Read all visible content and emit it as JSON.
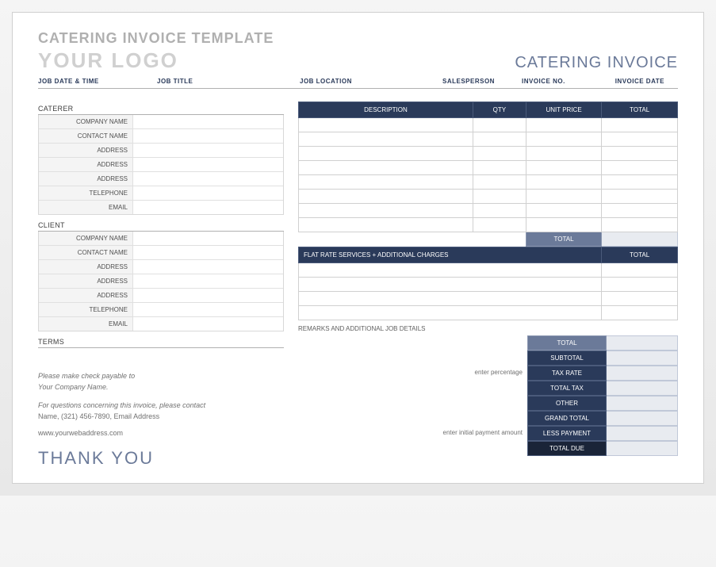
{
  "doc_title": "CATERING INVOICE TEMPLATE",
  "logo_placeholder": "YOUR LOGO",
  "invoice_heading": "CATERING INVOICE",
  "job_headers": {
    "date_time": "JOB DATE & TIME",
    "title": "JOB TITLE",
    "location": "JOB LOCATION",
    "salesperson": "SALESPERSON",
    "invoice_no": "INVOICE NO.",
    "invoice_date": "INVOICE DATE"
  },
  "sections": {
    "caterer": "CATERER",
    "client": "CLIENT",
    "terms": "TERMS"
  },
  "info_labels": {
    "company": "COMPANY NAME",
    "contact": "CONTACT NAME",
    "address": "ADDRESS",
    "telephone": "TELEPHONE",
    "email": "EMAIL"
  },
  "line_items_table": {
    "headers": {
      "description": "DESCRIPTION",
      "qty": "QTY",
      "unit_price": "UNIT PRICE",
      "total": "TOTAL"
    },
    "row_count": 8,
    "total_label": "TOTAL"
  },
  "flat_rate_table": {
    "header_left": "FLAT RATE SERVICES + ADDITIONAL CHARGES",
    "header_right": "TOTAL",
    "row_count": 4
  },
  "remarks_label": "REMARKS AND ADDITIONAL JOB DETAILS",
  "summary_notes": {
    "percentage": "enter percentage",
    "initial_payment": "enter initial payment amount"
  },
  "summary_labels": {
    "total": "TOTAL",
    "subtotal": "SUBTOTAL",
    "tax_rate": "TAX RATE",
    "total_tax": "TOTAL TAX",
    "other": "OTHER",
    "grand_total": "GRAND TOTAL",
    "less_payment": "LESS PAYMENT",
    "total_due": "TOTAL DUE"
  },
  "payment": {
    "line1": "Please make check payable to",
    "line2": "Your Company Name.",
    "line3": "For questions concerning this invoice, please contact",
    "line4": "Name, (321) 456-7890, Email Address",
    "website": "www.yourwebaddress.com"
  },
  "thank_you": "THANK YOU",
  "colors": {
    "header_dark": "#2a3a5a",
    "header_mid": "#6b7a99",
    "header_darkest": "#1a2438",
    "cell_tint": "#e8ebf0",
    "grey_text": "#b0b0b0"
  }
}
